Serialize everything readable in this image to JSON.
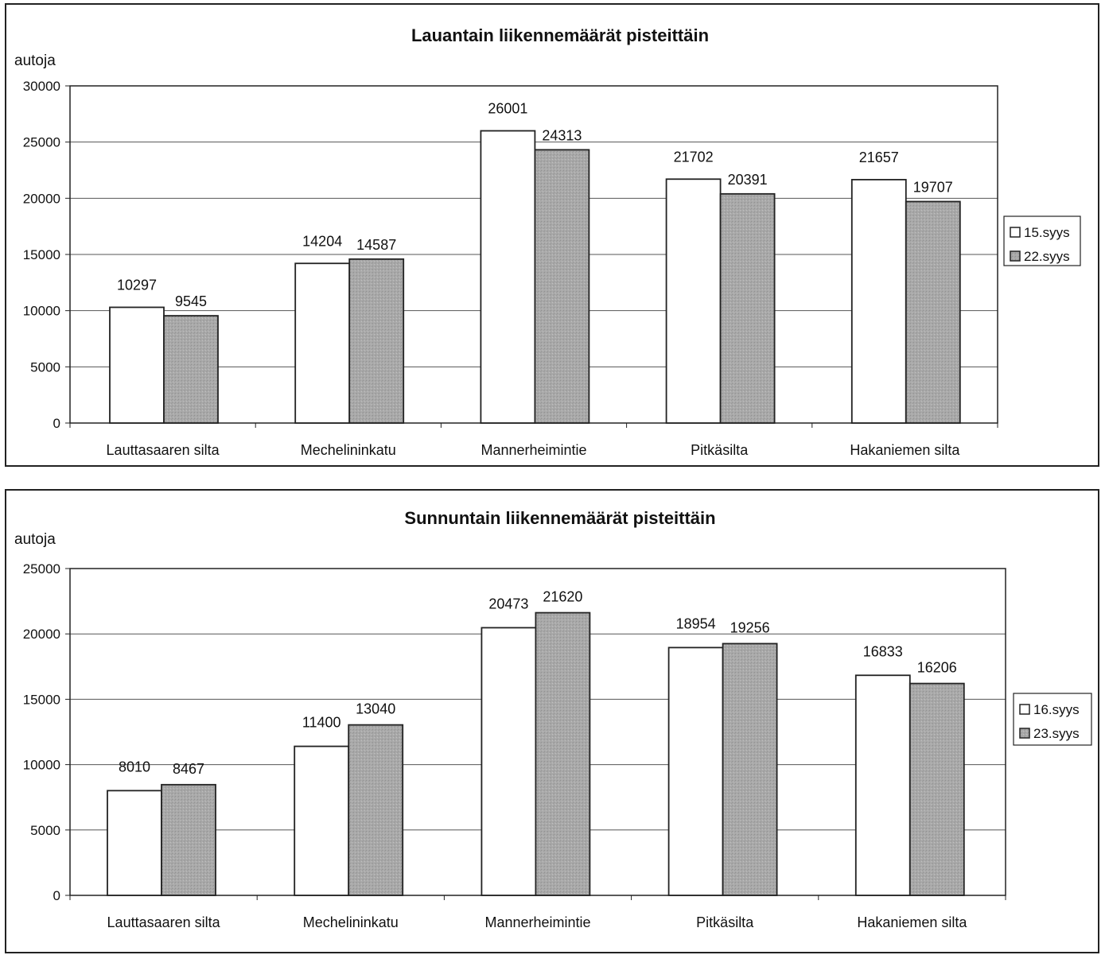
{
  "colors": {
    "series_a": "#ffffff",
    "series_b": "#a9a9a9",
    "grid": "#555555",
    "border": "#222222"
  },
  "chart_data": [
    {
      "type": "bar",
      "title": "Lauantain liikennemäärät pisteittäin",
      "ylabel": "autoja",
      "xlabel": "",
      "ylim": [
        0,
        30000
      ],
      "yticks": [
        0,
        5000,
        10000,
        15000,
        20000,
        25000,
        30000
      ],
      "categories": [
        "Lauttasaaren silta",
        "Mechelininkatu",
        "Mannerheimintie",
        "Pitkäsilta",
        "Hakaniemen silta"
      ],
      "series": [
        {
          "name": "15.syys",
          "values": [
            10297,
            14204,
            26001,
            21702,
            21657
          ]
        },
        {
          "name": "22.syys",
          "values": [
            9545,
            14587,
            24313,
            20391,
            19707
          ]
        }
      ],
      "grid": true,
      "legend": "right"
    },
    {
      "type": "bar",
      "title": "Sunnuntain liikennemäärät pisteittäin",
      "ylabel": "autoja",
      "xlabel": "",
      "ylim": [
        0,
        25000
      ],
      "yticks": [
        0,
        5000,
        10000,
        15000,
        20000,
        25000
      ],
      "categories": [
        "Lauttasaaren silta",
        "Mechelininkatu",
        "Mannerheimintie",
        "Pitkäsilta",
        "Hakaniemen silta"
      ],
      "series": [
        {
          "name": "16.syys",
          "values": [
            8010,
            11400,
            20473,
            18954,
            16833
          ]
        },
        {
          "name": "23.syys",
          "values": [
            8467,
            13040,
            21620,
            19256,
            16206
          ]
        }
      ],
      "grid": true,
      "legend": "right"
    }
  ]
}
